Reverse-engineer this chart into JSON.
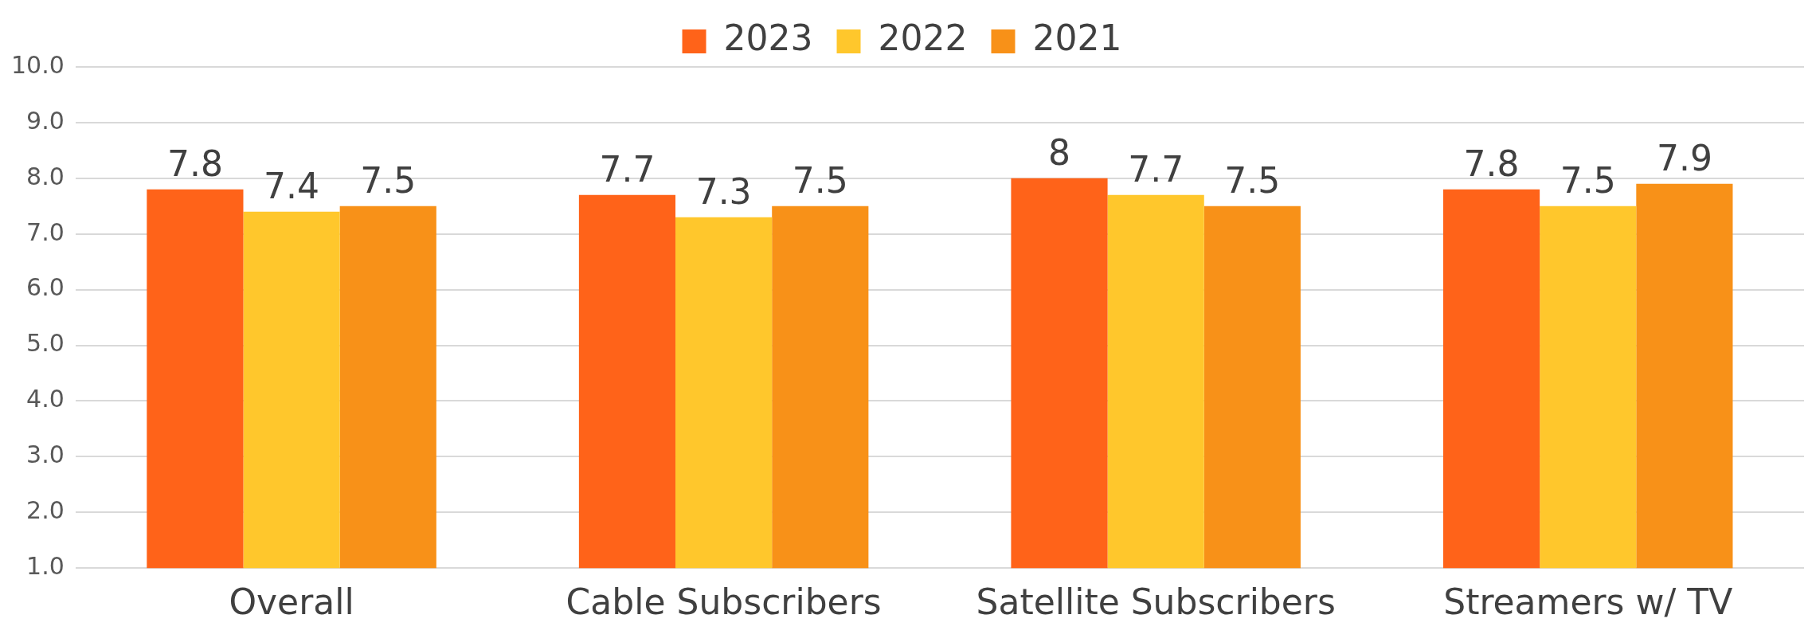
{
  "chart_data": {
    "type": "bar",
    "categories": [
      "Overall",
      "Cable Subscribers",
      "Satellite Subscribers",
      "Streamers w/ TV"
    ],
    "series": [
      {
        "name": "2023",
        "color": "#ff6319",
        "values": [
          7.8,
          7.7,
          8,
          7.8
        ]
      },
      {
        "name": "2022",
        "color": "#ffc72c",
        "values": [
          7.4,
          7.3,
          7.7,
          7.5
        ]
      },
      {
        "name": "2021",
        "color": "#f89118",
        "values": [
          7.5,
          7.5,
          7.5,
          7.9
        ]
      }
    ],
    "ylim": [
      1,
      10
    ],
    "yticks": [
      {
        "value": 1,
        "label": "1.0"
      },
      {
        "value": 2,
        "label": "2.0"
      },
      {
        "value": 3,
        "label": "3.0"
      },
      {
        "value": 4,
        "label": "4.0"
      },
      {
        "value": 5,
        "label": "5.0"
      },
      {
        "value": 6,
        "label": "6.0"
      },
      {
        "value": 7,
        "label": "7.0"
      },
      {
        "value": 8,
        "label": "8.0"
      },
      {
        "value": 9,
        "label": "9.0"
      },
      {
        "value": 10,
        "label": "10.0"
      }
    ],
    "grid": "y",
    "legend": "top",
    "data_labels": true
  }
}
